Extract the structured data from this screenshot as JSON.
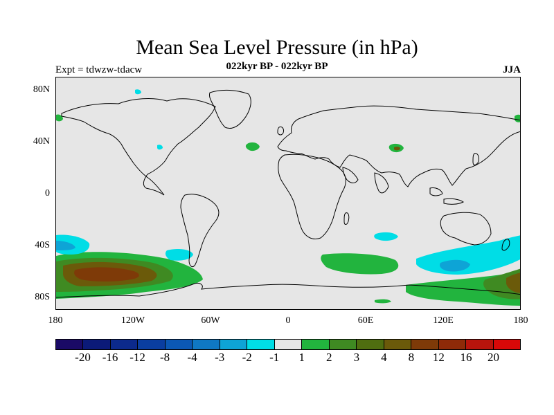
{
  "title": "Mean Sea Level Pressure (in hPa)",
  "subtitle": "022kyr BP - 022kyr BP",
  "left_label": "Expt = tdwzw-tdacw",
  "right_label": "JJA",
  "lat_labels": [
    "80N",
    "40N",
    "0",
    "40S",
    "80S"
  ],
  "lon_labels": [
    "180",
    "120W",
    "60W",
    "0",
    "60E",
    "120E",
    "180"
  ],
  "colorbar": {
    "labels": [
      "-20",
      "-16",
      "-12",
      "-8",
      "-4",
      "-3",
      "-2",
      "-1",
      "1",
      "2",
      "3",
      "4",
      "8",
      "12",
      "16",
      "20"
    ],
    "colors": [
      "#1a0a66",
      "#0b1a78",
      "#0c2a8c",
      "#0a3ea0",
      "#0b58b4",
      "#0f78c4",
      "#0ea4d6",
      "#00dde6",
      "#e6e6e6",
      "#22b43e",
      "#3f8a22",
      "#4f6e10",
      "#6b5a0a",
      "#7e3a08",
      "#8e2a08",
      "#b8140c",
      "#d80808"
    ]
  },
  "colors": {
    "background": "#e6e6e6",
    "coast": "#000000",
    "positive_light": "#22b43e",
    "positive_medium": "#3f8a22",
    "positive_dark": "#6b5a0a",
    "positive_darkest": "#7e3a08",
    "negative_light": "#00dde6",
    "negative_medium": "#0ea4d6"
  }
}
